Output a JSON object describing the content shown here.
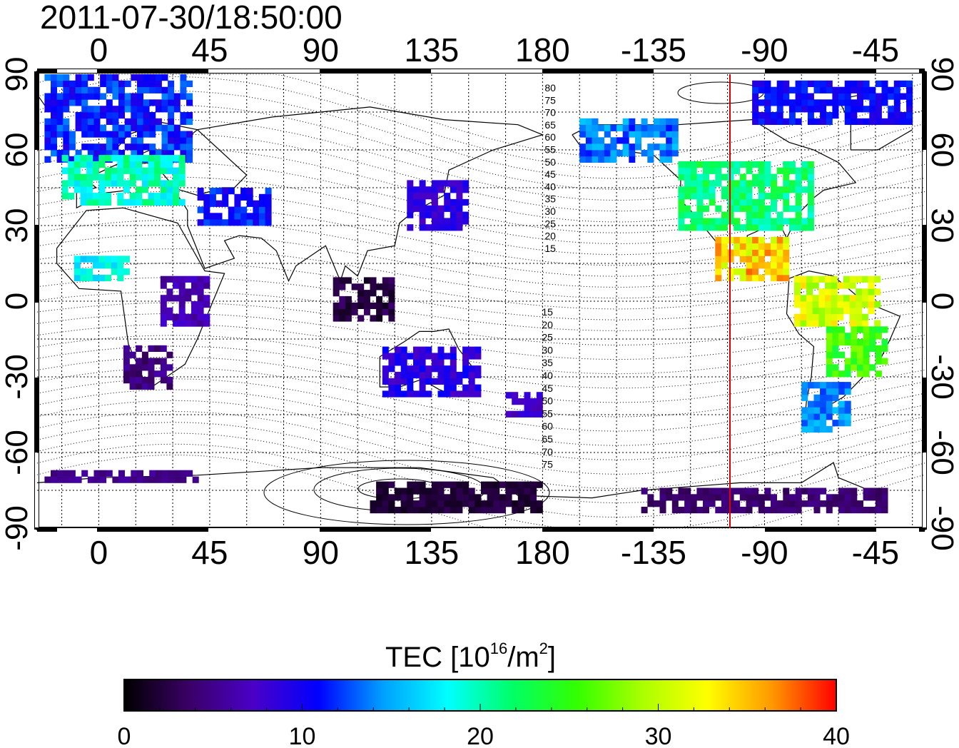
{
  "title": "2011-07-30/18:50:00",
  "map": {
    "x_ticks_top": [
      "0",
      "45",
      "90",
      "135",
      "180",
      "-135",
      "-90",
      "-45"
    ],
    "x_ticks_bottom": [
      "0",
      "45",
      "90",
      "135",
      "180",
      "-135",
      "-90",
      "-45"
    ],
    "y_ticks_left": [
      "90",
      "60",
      "30",
      "0",
      "-30",
      "-60",
      "-90"
    ],
    "y_ticks_right": [
      "90",
      "60",
      "30",
      "0",
      "-30",
      "-60",
      "-90"
    ],
    "contour_labels_north": [
      "80",
      "75",
      "70",
      "65",
      "60",
      "55",
      "50",
      "45",
      "40",
      "35",
      "30",
      "25",
      "20",
      "15"
    ],
    "contour_labels_south": [
      "15",
      "20",
      "25",
      "30",
      "35",
      "40",
      "45",
      "50",
      "55",
      "60",
      "65",
      "70",
      "75"
    ],
    "marker_line_longitude": -104,
    "marker_line_color": "#dd0000"
  },
  "colorbar": {
    "label_main": "TEC  [10",
    "label_exp": "16",
    "label_unit": "/m",
    "label_exp2": "2",
    "label_end": "]",
    "tick_labels": [
      "0",
      "10",
      "20",
      "30",
      "40"
    ],
    "min": 0,
    "max": 40,
    "colors": [
      "#000000",
      "#3a0066",
      "#4a00c8",
      "#0000ff",
      "#00a0ff",
      "#00ffff",
      "#00ff66",
      "#33ff00",
      "#aaff00",
      "#ffff00",
      "#ff9900",
      "#ff0000"
    ]
  }
}
